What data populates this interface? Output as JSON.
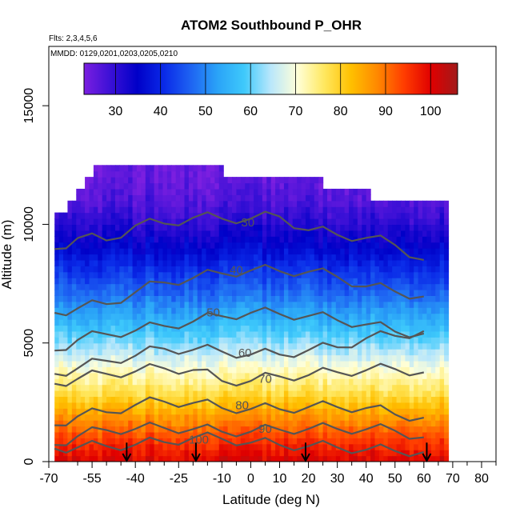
{
  "chart_data": {
    "type": "heatmap",
    "title": "ATOM2 Southbound P_OHR",
    "subtitle_flights": "Flts: 2,3,4,5,6",
    "subtitle_dates": "MMDD: 0129,0201,0203,0205,0210",
    "xlabel": "Latitude (deg N)",
    "ylabel": "Altitude (m)",
    "xlim": [
      -70,
      85
    ],
    "ylim": [
      0,
      17500
    ],
    "x_ticks": [
      -70,
      -55,
      -40,
      -25,
      -10,
      0,
      10,
      20,
      30,
      40,
      50,
      60,
      70,
      80
    ],
    "x_tick_labels": [
      "-70",
      "-55",
      "-40",
      "-25",
      "-10",
      "0",
      "10",
      "20",
      "30",
      "40",
      "50",
      "60",
      "70",
      "80"
    ],
    "x_minor_ticks": [
      -60,
      -50,
      -45,
      -35,
      -30,
      -20,
      -15,
      -5,
      5,
      15,
      25,
      35,
      45,
      55,
      65,
      75,
      85
    ],
    "y_ticks": [
      0,
      5000,
      10000,
      15000
    ],
    "y_tick_labels": [
      "0",
      "5000",
      "10000",
      "15000"
    ],
    "colorbar": {
      "range": [
        23,
        106
      ],
      "ticks": [
        30,
        40,
        50,
        60,
        70,
        80,
        90,
        100
      ],
      "tick_labels": [
        "30",
        "40",
        "50",
        "60",
        "70",
        "80",
        "90",
        "100"
      ],
      "colors": [
        "#7b1fe0",
        "#3a10d6",
        "#0000c8",
        "#0a2ae8",
        "#1e63f2",
        "#2aa3f7",
        "#3ec9fb",
        "#b9e7fb",
        "#ffffd8",
        "#ffe860",
        "#ffc000",
        "#ff8800",
        "#ff3c00",
        "#e00000",
        "#a11a1a"
      ]
    },
    "altitude_profile": {
      "altitude_m": [
        0,
        1000,
        2000,
        3000,
        4000,
        5000,
        6000,
        7000,
        8000,
        9000,
        10000,
        11000,
        12000
      ],
      "value": [
        101,
        94,
        86,
        77,
        70,
        62,
        55,
        48,
        42,
        36,
        31,
        27,
        25
      ]
    },
    "top_altitude_boundary": [
      {
        "lat_range": [
          -68,
          -63
        ],
        "top_m": 10500
      },
      {
        "lat_range": [
          -63,
          -60
        ],
        "top_m": 11000
      },
      {
        "lat_range": [
          -60,
          -57
        ],
        "top_m": 11400
      },
      {
        "lat_range": [
          -57,
          -54
        ],
        "top_m": 11900
      },
      {
        "lat_range": [
          -54,
          -49
        ],
        "top_m": 12400
      },
      {
        "lat_range": [
          -49,
          -10
        ],
        "top_m": 12500
      },
      {
        "lat_range": [
          -10,
          10
        ],
        "top_m": 12000
      },
      {
        "lat_range": [
          10,
          25
        ],
        "top_m": 12000
      },
      {
        "lat_range": [
          25,
          42
        ],
        "top_m": 11400
      },
      {
        "lat_range": [
          42,
          68
        ],
        "top_m": 11000
      }
    ],
    "contour_labels": [
      {
        "text": "30",
        "lat": -1,
        "alt_m": 10050
      },
      {
        "text": "40",
        "lat": -5,
        "alt_m": 8050
      },
      {
        "text": "50",
        "lat": -13,
        "alt_m": 6250
      },
      {
        "text": "60",
        "lat": -2,
        "alt_m": 4550
      },
      {
        "text": "70",
        "lat": 5,
        "alt_m": 3450
      },
      {
        "text": "80",
        "lat": -3,
        "alt_m": 2350
      },
      {
        "text": "90",
        "lat": 5,
        "alt_m": 1350
      },
      {
        "text": "100",
        "lat": -18,
        "alt_m": 900
      }
    ],
    "contour_levels": [
      {
        "level": 30,
        "alt_m": [
          8960,
          9420,
          9320,
          9950,
          10030,
          10280,
          10240,
          10240,
          10330,
          9750,
          9560,
          9430,
          9130,
          8500
        ]
      },
      {
        "level": 40,
        "alt_m": [
          6270,
          6460,
          6640,
          7140,
          7550,
          7740,
          7930,
          8060,
          8030,
          8000,
          7790,
          7380,
          7170,
          6960
        ]
      },
      {
        "level": 50,
        "alt_m": [
          4680,
          5130,
          5370,
          5520,
          5720,
          5900,
          6130,
          6270,
          6220,
          6140,
          5960,
          5780,
          5480,
          5400
        ]
      },
      {
        "level": 60,
        "alt_m": [
          3700,
          3930,
          4250,
          4460,
          4760,
          4710,
          4640,
          4510,
          4510,
          4700,
          4820,
          5200,
          5300,
          5500
        ]
      },
      {
        "level": 70,
        "alt_m": [
          3280,
          3490,
          3700,
          3800,
          3930,
          3860,
          3400,
          3400,
          3590,
          3640,
          3770,
          3850,
          3900,
          3760
        ]
      },
      {
        "level": 80,
        "alt_m": [
          1530,
          1910,
          2080,
          2390,
          2530,
          2470,
          2260,
          2220,
          2210,
          2300,
          2300,
          2260,
          1990,
          1850
        ]
      },
      {
        "level": 90,
        "alt_m": [
          700,
          1070,
          1330,
          1380,
          1420,
          1370,
          1260,
          1260,
          1350,
          1380,
          1380,
          1360,
          1300,
          1020
        ]
      },
      {
        "level": 100,
        "alt_m": [
          550,
          600,
          650,
          710,
          820,
          1000,
          960,
          800,
          700,
          650,
          600,
          500,
          450,
          400
        ]
      }
    ],
    "contour_lat_points": [
      -68,
      -60,
      -50,
      -40,
      -30,
      -20,
      -10,
      0,
      10,
      20,
      30,
      40,
      50,
      60
    ],
    "markers": {
      "description": "downward arrows along x-axis",
      "latitudes": [
        -43,
        -19,
        19,
        61
      ]
    },
    "grid": false,
    "legend": "colorbar top"
  }
}
